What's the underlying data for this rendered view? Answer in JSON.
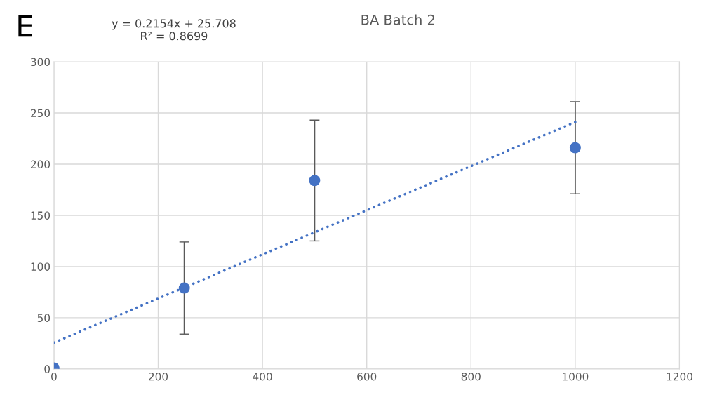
{
  "chart_data": {
    "type": "scatter",
    "title": "BA Batch 2",
    "annotations": [
      "E",
      "y = 0.2154x + 25.708\nR² = 0.8699"
    ],
    "series": [
      {
        "color": "#4472c4",
        "x": [
          0,
          250,
          500,
          1000
        ],
        "values": [
          1,
          79,
          184,
          216
        ],
        "errors": [
          null,
          45,
          59,
          45
        ],
        "marker": "circle"
      },
      {
        "type": "line",
        "color": "#4472c4",
        "x": [
          0,
          1000
        ],
        "values": [
          25.7,
          241.1
        ],
        "line_style": "dotted"
      }
    ],
    "xlim": [
      0,
      1200
    ],
    "xticks": [
      0,
      200,
      400,
      600,
      800,
      1000,
      1200
    ],
    "ylim": [
      0,
      300
    ],
    "yticks": [
      0,
      50,
      100,
      150,
      200,
      250,
      300
    ],
    "grid": true
  }
}
